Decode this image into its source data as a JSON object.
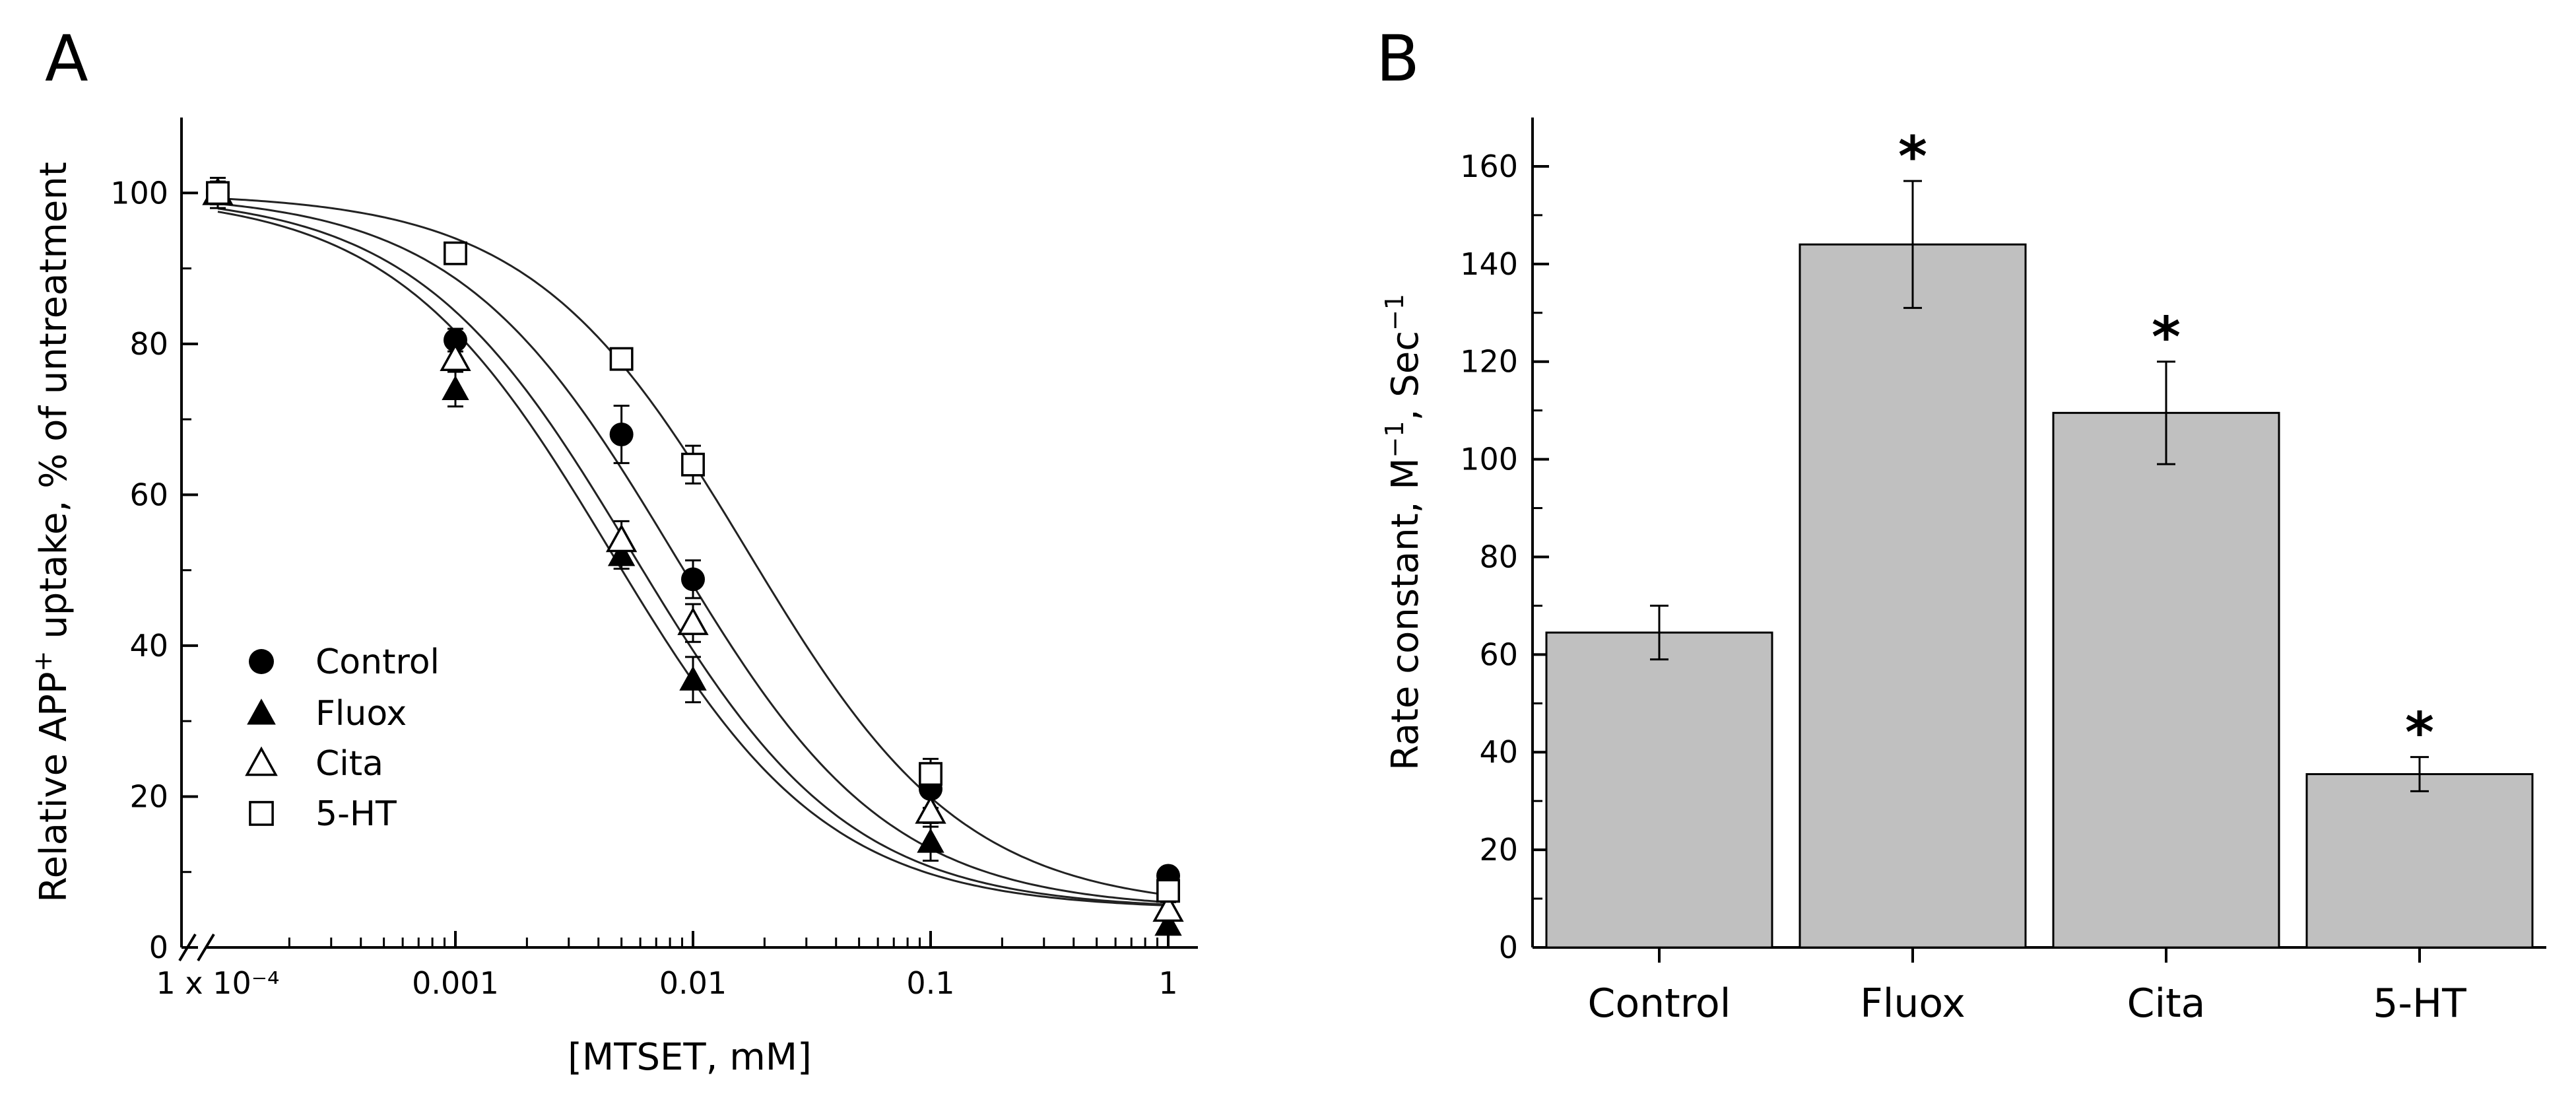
{
  "panel_a": {
    "letter": "A",
    "legend": [
      {
        "label": "Control",
        "marker": "filled-circle"
      },
      {
        "label": "Fluox",
        "marker": "filled-triangle"
      },
      {
        "label": "Cita",
        "marker": "open-triangle"
      },
      {
        "label": "5-HT",
        "marker": "open-square"
      }
    ]
  },
  "panel_b": {
    "letter": "B",
    "significance_mark": "*"
  },
  "chart_data": [
    {
      "type": "scatter",
      "title": "",
      "xlabel": "[MTSET, mM]",
      "ylabel": "Relative APP⁺ uptake, % of untreatment",
      "xscale": "log",
      "xlim": [
        0.0001,
        1
      ],
      "ylim": [
        0,
        110
      ],
      "x_ticks": [
        {
          "value": 0.0001,
          "label": "1 x 10⁻⁴"
        },
        {
          "value": 0.001,
          "label": "0.001"
        },
        {
          "value": 0.01,
          "label": "0.01"
        },
        {
          "value": 0.1,
          "label": "0.1"
        },
        {
          "value": 1,
          "label": "1"
        }
      ],
      "y_ticks": [
        {
          "value": 0,
          "label": "0"
        },
        {
          "value": 20,
          "label": "20"
        },
        {
          "value": 40,
          "label": "40"
        },
        {
          "value": 60,
          "label": "60"
        },
        {
          "value": 80,
          "label": "80"
        },
        {
          "value": 100,
          "label": "100"
        }
      ],
      "axis_break": true,
      "grid": false,
      "legend_position": "lower-left",
      "x": [
        0.0001,
        0.001,
        0.005,
        0.01,
        0.1,
        1
      ],
      "series": [
        {
          "name": "Control",
          "marker": "filled-circle",
          "y": [
            100,
            80.5,
            68,
            48.8,
            21,
            9.5
          ],
          "err": [
            2,
            1.5,
            3.8,
            2.5,
            2.5,
            1
          ],
          "fit": {
            "top": 100,
            "bottom": 5,
            "ec50": 0.0082,
            "hill": 0.95
          }
        },
        {
          "name": "Fluox",
          "marker": "filled-triangle",
          "y": [
            100,
            74,
            52,
            35.5,
            14,
            3
          ],
          "err": [
            1.5,
            2.3,
            1.8,
            3,
            2.5,
            1
          ],
          "fit": {
            "top": 100,
            "bottom": 5,
            "ec50": 0.0045,
            "hill": 0.95
          }
        },
        {
          "name": "Cita",
          "marker": "open-triangle",
          "y": [
            100,
            78,
            54,
            43,
            18,
            5
          ],
          "err": [
            1.5,
            1.5,
            2.5,
            2.5,
            2,
            1
          ],
          "fit": {
            "top": 100,
            "bottom": 5,
            "ec50": 0.0055,
            "hill": 0.95
          }
        },
        {
          "name": "5-HT",
          "marker": "open-square",
          "y": [
            100,
            92,
            78,
            64,
            23,
            7.5
          ],
          "err": [
            1.5,
            1.2,
            1,
            2.5,
            2,
            1
          ],
          "fit": {
            "top": 100,
            "bottom": 5,
            "ec50": 0.017,
            "hill": 0.95
          }
        }
      ]
    },
    {
      "type": "bar",
      "title": "",
      "xlabel": "",
      "ylabel": "Rate constant, M⁻¹, Sec⁻¹",
      "ylim": [
        0,
        170
      ],
      "y_ticks": [
        {
          "value": 0,
          "label": "0"
        },
        {
          "value": 20,
          "label": "20"
        },
        {
          "value": 40,
          "label": "40"
        },
        {
          "value": 60,
          "label": "60"
        },
        {
          "value": 80,
          "label": "80"
        },
        {
          "value": 100,
          "label": "100"
        },
        {
          "value": 120,
          "label": "120"
        },
        {
          "value": 140,
          "label": "140"
        },
        {
          "value": 160,
          "label": "160"
        }
      ],
      "grid": false,
      "bar_color": "#c0c0c0",
      "categories": [
        "Control",
        "Fluox",
        "Cita",
        "5-HT"
      ],
      "values": [
        64.5,
        144,
        109.5,
        35.5
      ],
      "errors": [
        5.5,
        13,
        10.5,
        3.5
      ],
      "significant": [
        false,
        true,
        true,
        true
      ]
    }
  ]
}
